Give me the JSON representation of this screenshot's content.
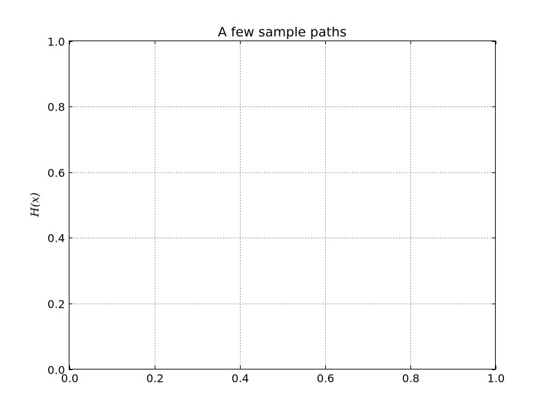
{
  "chart_data": {
    "type": "line",
    "title": "A few sample paths",
    "xlabel": "",
    "ylabel": "H(x)",
    "xlim": [
      0.0,
      1.0
    ],
    "ylim": [
      0.0,
      1.0
    ],
    "xticks": [
      "0.0",
      "0.2",
      "0.4",
      "0.6",
      "0.8",
      "1.0"
    ],
    "yticks": [
      "0.0",
      "0.2",
      "0.4",
      "0.6",
      "0.8",
      "1.0"
    ],
    "grid": true,
    "series": []
  }
}
